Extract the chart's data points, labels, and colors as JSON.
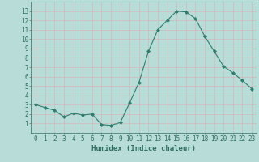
{
  "x": [
    0,
    1,
    2,
    3,
    4,
    5,
    6,
    7,
    8,
    9,
    10,
    11,
    12,
    13,
    14,
    15,
    16,
    17,
    18,
    19,
    20,
    21,
    22,
    23
  ],
  "y": [
    3.0,
    2.7,
    2.4,
    1.7,
    2.1,
    1.9,
    2.0,
    0.9,
    0.8,
    1.1,
    3.2,
    5.4,
    8.7,
    11.0,
    12.0,
    13.0,
    12.9,
    12.2,
    10.3,
    8.7,
    7.1,
    6.4,
    5.6,
    4.7
  ],
  "line_color": "#2e7d6e",
  "marker": "D",
  "marker_size": 2.0,
  "bg_color": "#b8ddd8",
  "grid_color": "#d4b8b8",
  "xlabel": "Humidex (Indice chaleur)",
  "ylim": [
    0,
    14
  ],
  "xlim": [
    -0.5,
    23.5
  ],
  "yticks": [
    1,
    2,
    3,
    4,
    5,
    6,
    7,
    8,
    9,
    10,
    11,
    12,
    13
  ],
  "xticks": [
    0,
    1,
    2,
    3,
    4,
    5,
    6,
    7,
    8,
    9,
    10,
    11,
    12,
    13,
    14,
    15,
    16,
    17,
    18,
    19,
    20,
    21,
    22,
    23
  ],
  "tick_color": "#2e6e60",
  "label_fontsize": 5.5,
  "xlabel_fontsize": 6.5
}
